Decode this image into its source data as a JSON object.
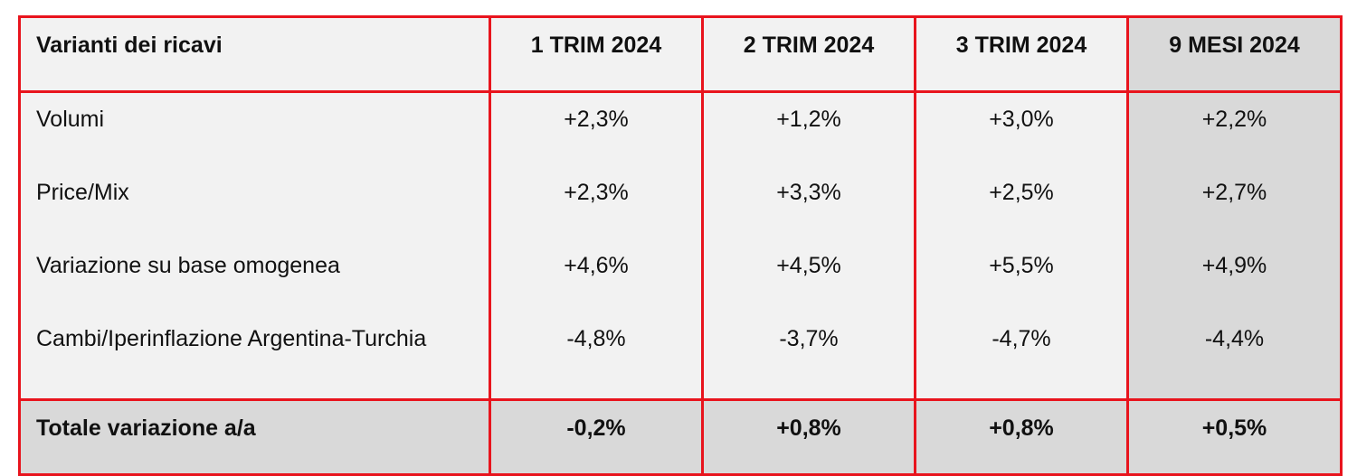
{
  "table": {
    "headers": [
      "Varianti dei ricavi",
      "1 TRIM 2024",
      "2 TRIM 2024",
      "3 TRIM 2024",
      "9 MESI 2024"
    ],
    "row_labels": [
      "Volumi",
      "Price/Mix",
      "Variazione su base omogenea",
      "Cambi/Iperinflazione Argentina-Turchia"
    ],
    "columns": [
      [
        "+2,3%",
        "+2,3%",
        "+4,6%",
        "-4,8%"
      ],
      [
        "+1,2%",
        "+3,3%",
        "+4,5%",
        "-3,7%"
      ],
      [
        "+3,0%",
        "+2,5%",
        "+5,5%",
        "-4,7%"
      ],
      [
        "+2,2%",
        "+2,7%",
        "+4,9%",
        "-4,4%"
      ]
    ],
    "total": {
      "label": "Totale variazione a/a",
      "values": [
        "-0,2%",
        "+0,8%",
        "+0,8%",
        "+0,5%"
      ]
    }
  },
  "colors": {
    "border": "#e8141d",
    "cell_background": "#f2f2f2",
    "highlight_background": "#d9d9d9"
  }
}
